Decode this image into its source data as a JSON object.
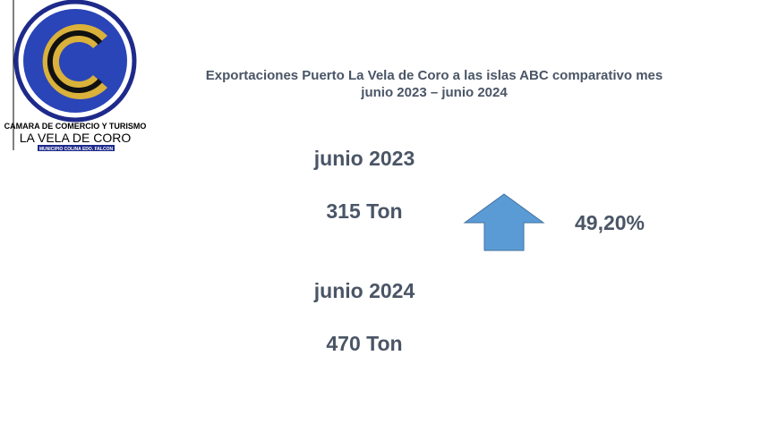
{
  "logo": {
    "line1": "CAMARA DE COMERCIO Y TURISMO",
    "line2": "LA VELA DE CORO",
    "line3": "MUNICIPIO COLINA EDO. FALCON"
  },
  "title": {
    "line1": "Exportaciones Puerto La Vela de Coro a las islas ABC comparativo mes",
    "line2": "junio 2023 – junio 2024"
  },
  "period1": {
    "label": "junio 2023",
    "amount": "315 Ton"
  },
  "period2": {
    "label": "junio 2024",
    "amount": "470 Ton"
  },
  "change": "49,20%"
}
